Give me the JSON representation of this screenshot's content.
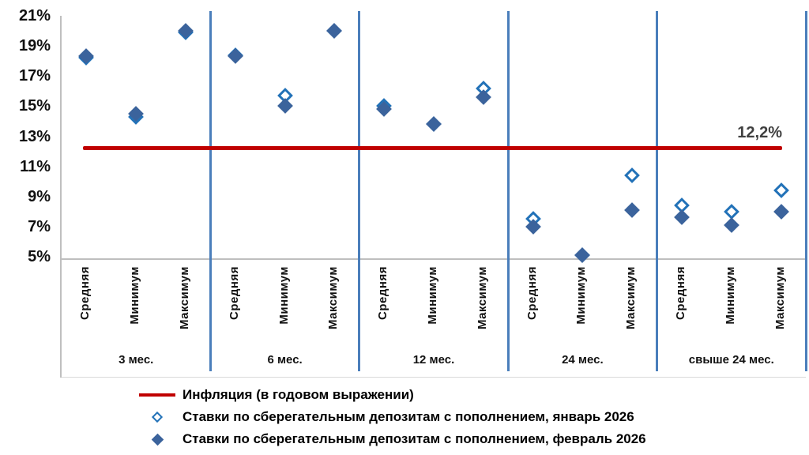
{
  "chart_data": {
    "type": "scatter",
    "y_axis": {
      "min": 5,
      "max": 21,
      "step": 2,
      "tick_labels": [
        "21%",
        "19%",
        "17%",
        "15%",
        "13%",
        "11%",
        "9%",
        "7%",
        "5%"
      ]
    },
    "groups": [
      {
        "label": "3 мес.",
        "categories": [
          "Средняя",
          "Минимум",
          "Максимум"
        ]
      },
      {
        "label": "6 мес.",
        "categories": [
          "Средняя",
          "Минимум",
          "Максимум"
        ]
      },
      {
        "label": "12 мес.",
        "categories": [
          "Средняя",
          "Минимум",
          "Максимум"
        ]
      },
      {
        "label": "24 мес.",
        "categories": [
          "Средняя",
          "Минимум",
          "Максимум"
        ]
      },
      {
        "label": "свыше 24 мес.",
        "categories": [
          "Средняя",
          "Минимум",
          "Максимум"
        ]
      }
    ],
    "series": [
      {
        "name": "Ставки по сберегательным депозитам с пополнением, январь 2026",
        "marker": "open-diamond",
        "color": "#2272B8",
        "values": [
          [
            18.2,
            14.3,
            19.9
          ],
          [
            18.4,
            15.7,
            20.0
          ],
          [
            15.0,
            13.8,
            16.2
          ],
          [
            7.5,
            5.1,
            10.4
          ],
          [
            8.4,
            8.0,
            9.4
          ]
        ]
      },
      {
        "name": "Ставки по сберегательным депозитам с пополнением, февраль 2026",
        "marker": "filled-diamond",
        "color": "#3B639C",
        "values": [
          [
            18.3,
            14.5,
            20.0
          ],
          [
            18.3,
            15.0,
            20.0
          ],
          [
            14.8,
            13.8,
            15.6
          ],
          [
            7.0,
            5.1,
            8.1
          ],
          [
            7.6,
            7.1,
            8.0
          ]
        ]
      }
    ],
    "reference_line": {
      "name": "Инфляция (в годовом выражении)",
      "value": 12.2,
      "label": "12,2%",
      "color": "#C00000"
    },
    "colors": {
      "separator": "#4A7EBB",
      "axis": "#BFBFBF",
      "open_marker_stroke": "#2272B8",
      "filled_marker_fill": "#3B639C",
      "annotation_text": "#404040"
    },
    "legend_position": "bottom-left",
    "grid": false
  }
}
